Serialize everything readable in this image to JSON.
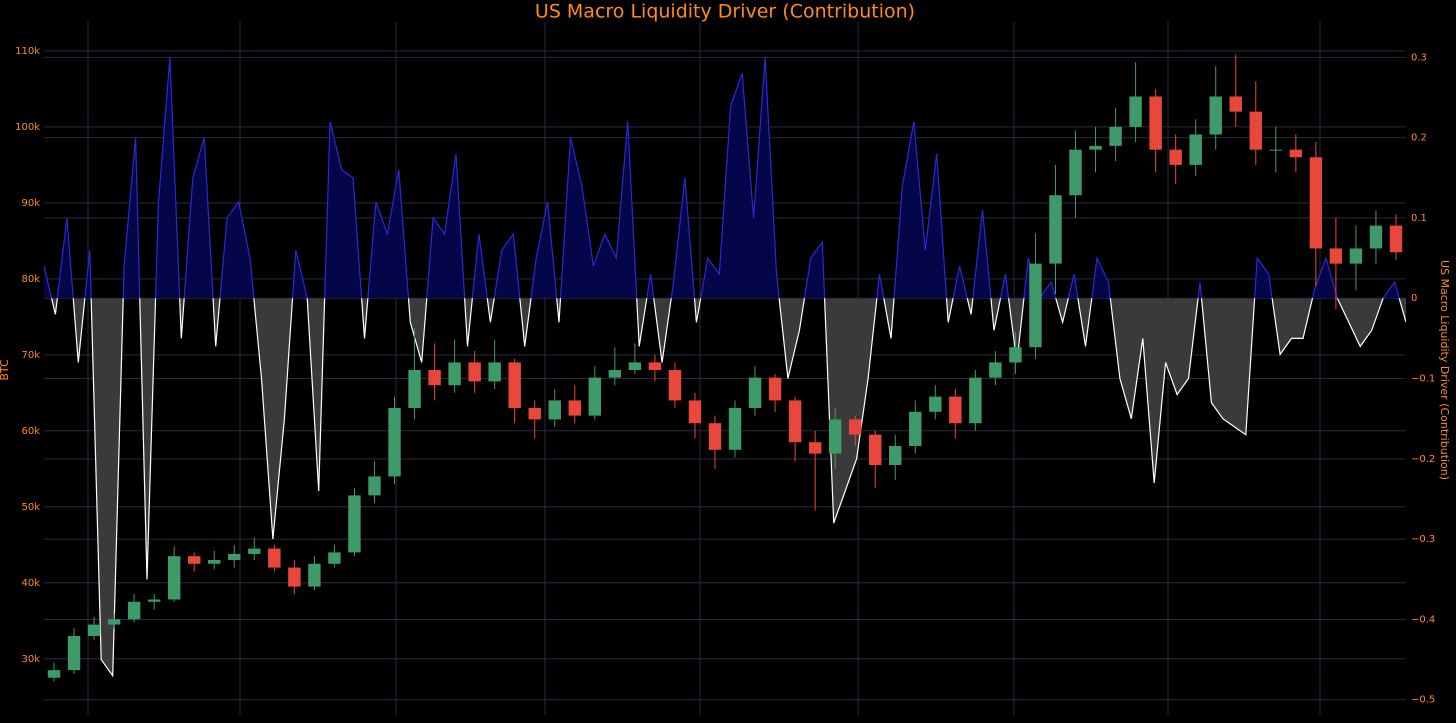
{
  "chart_data": [
    {
      "type": "candlestick",
      "title": "US Macro Liquidity Driver (Contribution)",
      "ylabel": "BTC",
      "increasing_color": "#3f9a6a",
      "decreasing_color": "#e8483c",
      "ylim": [
        22600,
        113800
      ],
      "yticks": [
        {
          "value": 30000,
          "label": "30k"
        },
        {
          "value": 40000,
          "label": "40k"
        },
        {
          "value": 50000,
          "label": "50k"
        },
        {
          "value": 60000,
          "label": "60k"
        },
        {
          "value": 70000,
          "label": "70k"
        },
        {
          "value": 80000,
          "label": "80k"
        },
        {
          "value": 90000,
          "label": "90k"
        },
        {
          "value": 100000,
          "label": "100k"
        },
        {
          "value": 110000,
          "label": "110k"
        }
      ],
      "grid": true,
      "open": [
        27500,
        28500,
        33000,
        34500,
        35200,
        37500,
        37800,
        43500,
        42500,
        43000,
        43800,
        44500,
        42000,
        39500,
        42500,
        44000,
        51500,
        54000,
        63000,
        68000,
        66000,
        69000,
        66500,
        69000,
        63000,
        61500,
        64000,
        62000,
        67000,
        68000,
        69000,
        68000,
        64000,
        61000,
        57500,
        63000,
        67000,
        64000,
        58500,
        57000,
        61500,
        59500,
        55500,
        58000,
        62500,
        64500,
        61000,
        67000,
        69000,
        71000,
        82000,
        91000,
        97000,
        97500,
        100000,
        104000,
        97000,
        95000,
        99000,
        104000,
        102000,
        97000,
        97000,
        96000,
        84000,
        82000,
        84000,
        87000
      ],
      "high": [
        29500,
        34000,
        35500,
        36000,
        38500,
        38500,
        44800,
        44000,
        44200,
        45000,
        46000,
        45000,
        43000,
        43500,
        45000,
        52500,
        56000,
        64500,
        73500,
        71500,
        72000,
        70500,
        72000,
        69500,
        64000,
        65500,
        66000,
        68500,
        71000,
        71500,
        70000,
        69000,
        65000,
        62000,
        64000,
        68500,
        67500,
        64500,
        60000,
        63000,
        62000,
        60000,
        59500,
        64000,
        66000,
        65500,
        68000,
        70500,
        73000,
        86000,
        95000,
        99500,
        100000,
        102500,
        108500,
        105000,
        99000,
        101000,
        108000,
        109500,
        106000,
        100000,
        99000,
        98000,
        88000,
        87000,
        89000,
        88500
      ],
      "low": [
        27000,
        28000,
        32500,
        34000,
        34800,
        36500,
        37500,
        41500,
        41800,
        42000,
        43000,
        41500,
        38500,
        39000,
        42000,
        43500,
        50500,
        53000,
        61500,
        64000,
        65000,
        65000,
        65500,
        61000,
        59000,
        60500,
        61000,
        61500,
        66000,
        67500,
        66500,
        63000,
        59000,
        55000,
        56500,
        62000,
        62500,
        56000,
        49500,
        55000,
        58000,
        52500,
        53500,
        57000,
        61500,
        59000,
        60000,
        66000,
        67500,
        69500,
        78000,
        88000,
        94000,
        95500,
        98000,
        94000,
        92500,
        93500,
        97000,
        100000,
        95000,
        94000,
        94000,
        79000,
        76000,
        78500,
        82000,
        82500
      ],
      "close": [
        28500,
        33000,
        34500,
        35200,
        37500,
        37800,
        43500,
        42500,
        43000,
        43800,
        44500,
        42000,
        39500,
        42500,
        44000,
        51500,
        54000,
        63000,
        68000,
        66000,
        69000,
        66500,
        69000,
        63000,
        61500,
        64000,
        62000,
        67000,
        68000,
        69000,
        68000,
        64000,
        61000,
        57500,
        63000,
        67000,
        64000,
        58500,
        57000,
        61500,
        59500,
        55500,
        58000,
        62500,
        64500,
        61000,
        67000,
        69000,
        71000,
        82000,
        91000,
        97000,
        97500,
        100000,
        104000,
        97000,
        95000,
        99000,
        104000,
        102000,
        97000,
        97000,
        96000,
        84000,
        82000,
        84000,
        87000,
        83500
      ]
    },
    {
      "type": "area",
      "y2label": "US Macro Liquidity Driver (Contribution)",
      "positive_fill": "#05054a",
      "positive_line": "#2a2ad0",
      "negative_fill": "#3a3a3a",
      "negative_line": "#ffffff",
      "y2lim": [
        -0.519,
        0.344
      ],
      "y2ticks": [
        {
          "value": -0.5,
          "label": "−0.5"
        },
        {
          "value": -0.4,
          "label": "−0.4"
        },
        {
          "value": -0.3,
          "label": "−0.3"
        },
        {
          "value": -0.2,
          "label": "−0.2"
        },
        {
          "value": -0.1,
          "label": "−0.1"
        },
        0,
        0.1,
        0.2,
        0.3
      ],
      "series": [
        {
          "axis": "y2",
          "values": [
            0.04,
            -0.02,
            0.1,
            -0.08,
            0.06,
            -0.45,
            -0.47,
            0.04,
            0.2,
            -0.35,
            0.12,
            0.3,
            -0.05,
            0.15,
            0.2,
            -0.06,
            0.1,
            0.12,
            0.05,
            -0.1,
            -0.3,
            -0.15,
            0.06,
            0,
            -0.24,
            0.22,
            0.16,
            0.15,
            -0.05,
            0.12,
            0.08,
            0.16,
            -0.03,
            -0.08,
            0.1,
            0.08,
            0.18,
            -0.06,
            0.08,
            -0.03,
            0.06,
            0.08,
            -0.06,
            0.05,
            0.12,
            -0.03,
            0.2,
            0.14,
            0.04,
            0.08,
            0.05,
            0.22,
            -0.06,
            0.03,
            -0.08,
            0.02,
            0.15,
            -0.03,
            0.05,
            0.03,
            0.24,
            0.28,
            0.1,
            0.3,
            0.03,
            -0.1,
            -0.04,
            0.05,
            0.07,
            -0.28,
            -0.24,
            -0.2,
            -0.1,
            0.03,
            -0.05,
            0.14,
            0.22,
            0.06,
            0.18,
            -0.03,
            0.04,
            -0.02,
            0.11,
            -0.04,
            0.03,
            -0.08,
            0.05,
            0,
            0.02,
            -0.03,
            0.03,
            -0.06,
            0.05,
            0.02,
            -0.1,
            -0.15,
            -0.05,
            -0.23,
            -0.08,
            -0.12,
            -0.1,
            0.02,
            -0.13,
            -0.15,
            -0.16,
            -0.17,
            0.05,
            0.03,
            -0.07,
            -0.05,
            -0.05,
            0.01,
            0.05,
            0,
            -0.03,
            -0.06,
            -0.04,
            0,
            0.02,
            -0.03
          ]
        }
      ]
    }
  ]
}
